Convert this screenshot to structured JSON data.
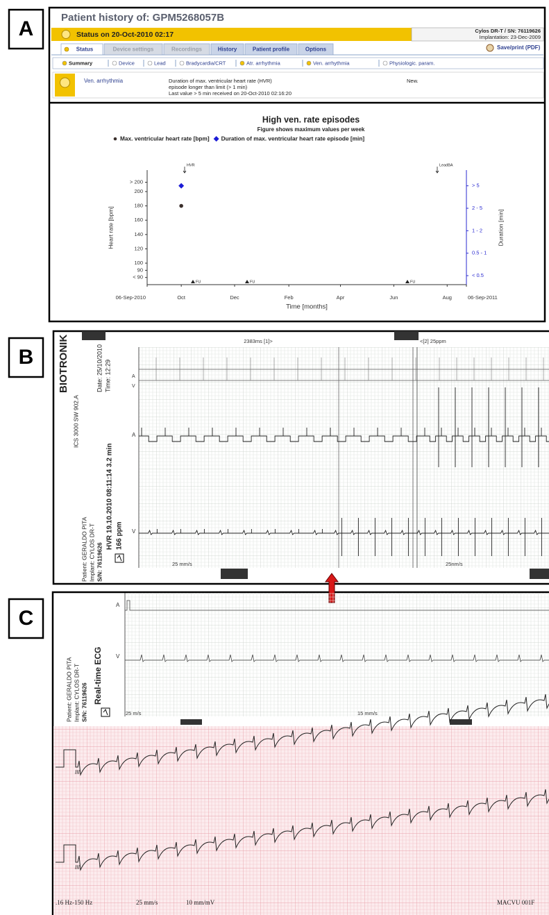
{
  "panel_labels": [
    "A",
    "B",
    "C"
  ],
  "panel_a": {
    "title": "Patient history of: GPM5268057B",
    "status": "Status on 20-Oct-2010 02:17",
    "device": "Cylos DR-T / SN: 76119626",
    "implantation": "Implantation: 23-Dec-2009",
    "tabs": [
      "Status",
      "Device settings",
      "Recordings",
      "History",
      "Patient profile",
      "Options"
    ],
    "save": "Save/print (PDF)",
    "subtabs": [
      "Summary",
      "Device",
      "Lead",
      "Bradycardia/CRT",
      "Atr. arrhythmia",
      "Ven. arrhythmia",
      "Physiologic. param."
    ],
    "alert": {
      "category": "Ven. arrhythmia",
      "message": [
        "Duration of max. ventricular heart rate (HVR)",
        "episode longer than limit (> 1 min)",
        "Last value > 5 min received on 20-Oct-2010 02:16:20"
      ],
      "state": "New."
    },
    "chart": {
      "type": "scatter",
      "title": "High ven. rate episodes",
      "subtitle": "Figure shows maximum values per week",
      "xlabel": "Time [months]",
      "ylabel": "Heart rate [bpm]",
      "y2label": "Duration [min]",
      "xlim": [
        "2010-09-06",
        "2011-09-06"
      ],
      "xticks": [
        {
          "value": "2010-09-06",
          "label": "06-Sep-2010"
        },
        {
          "value": "2010-10",
          "label": "Oct"
        },
        {
          "value": "2010-12",
          "label": "Dec"
        },
        {
          "value": "2011-02",
          "label": "Feb"
        },
        {
          "value": "2011-04",
          "label": "Apr"
        },
        {
          "value": "2011-06",
          "label": "Jun"
        },
        {
          "value": "2011-08",
          "label": "Aug"
        },
        {
          "value": "2011-09-06",
          "label": "06-Sep-2011"
        }
      ],
      "ylim": [
        70,
        230
      ],
      "yticks": [
        {
          "value": 213,
          "label": "> 200"
        },
        200,
        180,
        160,
        140,
        120,
        100,
        90,
        {
          "value": 80,
          "label": "< 90"
        }
      ],
      "y2lim": [
        0.6,
        5.7
      ],
      "y2ticks": [
        {
          "value": 5,
          "label": "> 5"
        },
        {
          "value": 4,
          "label": "2 - 5"
        },
        {
          "value": 3,
          "label": "1 - 2"
        },
        {
          "value": 2,
          "label": "0.5 - 1"
        },
        {
          "value": 1,
          "label": "< 0.5"
        }
      ],
      "series": [
        {
          "name": "Max. ventricular heart rate [bpm]",
          "color": "#3b302c",
          "x": [
            "2010-10"
          ],
          "values": [
            180
          ]
        },
        {
          "name": "Duration of max. ventricular heart rate episode [min]",
          "color": "#1c1cd6",
          "axis": "y2",
          "x": [
            "2010-10"
          ],
          "values": [
            5
          ]
        }
      ],
      "annotations": [
        "HVR",
        "LeadBA"
      ],
      "markers": [
        "FU",
        "FU",
        "FU"
      ]
    }
  },
  "panel_b": {
    "brand": "BIOTRONIK",
    "model": "ICS 3000 SW 902.A",
    "date": "Date: 25/10/2010",
    "time": "Time: 12:29",
    "patient": "Patient: GERALDO PITA",
    "implant": "Implant: CYLOS DR-T",
    "serial": "S/N: 76119626",
    "episode": "HVR 19.10.2010 08:11:14 3.2 min",
    "rate": "166 ppm",
    "marker_left": "2383ms [1]>",
    "marker_right": "<[2] 25ppm",
    "ruler_a": "A",
    "ruler_v": "V",
    "trace_a": "A",
    "trace_v": "V",
    "speed_left": "25 mm/s",
    "speed_right": "25nm/s"
  },
  "panel_c": {
    "patient": "Patient: GERALDO PITA",
    "implant": "Implant: CYLOS DR-T",
    "serial": "S/N: 76119626",
    "mode": "Real-time ECG",
    "trace_a": "A",
    "trace_v": "V",
    "speed_left": "25 m/s",
    "speed_right": "15 mm/s",
    "lead_1": "III",
    "lead_2": "III",
    "filter": ".16 Hz-150 Hz",
    "paper_speed": "25 mm/s",
    "gain": "10 mm/mV",
    "device": "MACVU 001F"
  }
}
